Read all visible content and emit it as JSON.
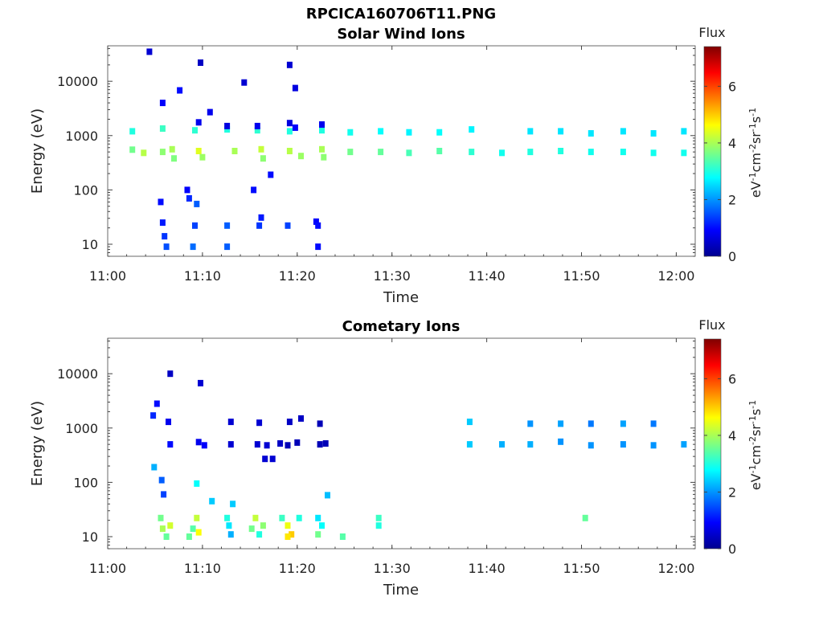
{
  "figure": {
    "title": "RPCICA160706T11.PNG"
  },
  "chart_data": [
    {
      "type": "heatmap",
      "title": "Solar Wind Ions",
      "xlabel": "Time",
      "ylabel": "Energy (eV)",
      "x_ticks": [
        "11:00",
        "11:10",
        "11:20",
        "11:30",
        "11:40",
        "11:50",
        "12:00"
      ],
      "xlim_min": [
        0,
        62
      ],
      "y_scale": "log",
      "ylim": [
        6,
        45000
      ],
      "y_ticks": [
        10,
        100,
        1000,
        10000
      ],
      "y_tick_labels": [
        "10",
        "100",
        "1000",
        "10000"
      ],
      "colorbar": {
        "title": "Flux",
        "label": "eV-1cm-2sr-1s-1",
        "range": [
          0,
          7.4
        ],
        "ticks": [
          "0",
          "2",
          "4",
          "6"
        ]
      },
      "cells": [
        [
          2.6,
          1200,
          3.0
        ],
        [
          2.6,
          550,
          3.6
        ],
        [
          3.8,
          480,
          4.1
        ],
        [
          5.8,
          1350,
          3.2
        ],
        [
          5.8,
          500,
          3.8
        ],
        [
          6.8,
          560,
          4.0
        ],
        [
          7.0,
          380,
          3.7
        ],
        [
          9.2,
          1250,
          3.1
        ],
        [
          9.6,
          520,
          4.4
        ],
        [
          10.0,
          400,
          3.9
        ],
        [
          12.6,
          1300,
          3.0
        ],
        [
          13.4,
          520,
          4.0
        ],
        [
          15.8,
          1250,
          3.1
        ],
        [
          16.2,
          560,
          4.2
        ],
        [
          16.4,
          380,
          3.8
        ],
        [
          19.2,
          1200,
          3.0
        ],
        [
          19.2,
          520,
          4.1
        ],
        [
          20.4,
          420,
          3.9
        ],
        [
          22.6,
          1250,
          3.0
        ],
        [
          22.6,
          560,
          4.0
        ],
        [
          22.8,
          400,
          3.8
        ],
        [
          25.6,
          1150,
          2.9
        ],
        [
          25.6,
          500,
          3.6
        ],
        [
          28.8,
          1200,
          2.8
        ],
        [
          28.8,
          500,
          3.5
        ],
        [
          31.8,
          1150,
          2.7
        ],
        [
          31.8,
          480,
          3.3
        ],
        [
          35.0,
          1150,
          2.8
        ],
        [
          35.0,
          520,
          3.4
        ],
        [
          38.4,
          1300,
          2.7
        ],
        [
          38.4,
          500,
          3.1
        ],
        [
          41.6,
          480,
          2.9
        ],
        [
          44.6,
          1200,
          2.6
        ],
        [
          44.6,
          500,
          3.0
        ],
        [
          47.8,
          1200,
          2.6
        ],
        [
          47.8,
          520,
          3.0
        ],
        [
          51.0,
          1100,
          2.6
        ],
        [
          51.0,
          500,
          2.9
        ],
        [
          54.4,
          1200,
          2.6
        ],
        [
          54.4,
          500,
          2.9
        ],
        [
          57.6,
          1100,
          2.6
        ],
        [
          57.6,
          480,
          2.9
        ],
        [
          60.8,
          1200,
          2.6
        ],
        [
          60.8,
          480,
          2.9
        ],
        [
          4.4,
          35000,
          0.6
        ],
        [
          9.8,
          22000,
          0.5
        ],
        [
          14.4,
          9500,
          0.6
        ],
        [
          19.2,
          20000,
          0.6
        ],
        [
          19.8,
          7500,
          0.7
        ],
        [
          9.6,
          1750,
          0.8
        ],
        [
          12.6,
          1500,
          0.7
        ],
        [
          15.8,
          1500,
          0.8
        ],
        [
          19.2,
          1700,
          0.7
        ],
        [
          19.8,
          1400,
          0.9
        ],
        [
          22.6,
          1600,
          0.8
        ],
        [
          10.8,
          2700,
          0.8
        ],
        [
          5.8,
          4000,
          0.9
        ],
        [
          7.6,
          6800,
          1.0
        ],
        [
          5.6,
          60,
          1.0
        ],
        [
          8.4,
          100,
          0.9
        ],
        [
          8.6,
          70,
          1.2
        ],
        [
          9.4,
          55,
          1.6
        ],
        [
          15.4,
          100,
          1.0
        ],
        [
          17.2,
          190,
          1.0
        ],
        [
          5.8,
          25,
          1.1
        ],
        [
          6.0,
          14,
          1.3
        ],
        [
          6.2,
          9,
          1.5
        ],
        [
          9.0,
          9,
          1.7
        ],
        [
          9.2,
          22,
          1.4
        ],
        [
          12.6,
          22,
          1.6
        ],
        [
          12.6,
          9,
          1.6
        ],
        [
          16.0,
          22,
          1.3
        ],
        [
          16.2,
          31,
          1.1
        ],
        [
          19.0,
          22,
          1.4
        ],
        [
          22.0,
          26,
          0.9
        ],
        [
          22.2,
          22,
          1.0
        ],
        [
          22.2,
          9,
          1.0
        ]
      ]
    },
    {
      "type": "heatmap",
      "title": "Cometary Ions",
      "xlabel": "Time",
      "ylabel": "Energy (eV)",
      "x_ticks": [
        "11:00",
        "11:10",
        "11:20",
        "11:30",
        "11:40",
        "11:50",
        "12:00"
      ],
      "xlim_min": [
        0,
        62
      ],
      "y_scale": "log",
      "ylim": [
        6,
        45000
      ],
      "y_ticks": [
        10,
        100,
        1000,
        10000
      ],
      "y_tick_labels": [
        "10",
        "100",
        "1000",
        "10000"
      ],
      "colorbar": {
        "title": "Flux",
        "label": "eV-1cm-2sr-1s-1",
        "range": [
          0,
          7.4
        ],
        "ticks": [
          "0",
          "2",
          "4",
          "6"
        ]
      },
      "cells": [
        [
          6.6,
          10000,
          0.5
        ],
        [
          9.8,
          6700,
          0.6
        ],
        [
          5.2,
          2800,
          1.0
        ],
        [
          4.8,
          1700,
          1.2
        ],
        [
          6.4,
          1300,
          0.8
        ],
        [
          6.6,
          500,
          1.0
        ],
        [
          9.6,
          550,
          0.8
        ],
        [
          10.2,
          480,
          0.9
        ],
        [
          13.0,
          500,
          0.6
        ],
        [
          15.8,
          500,
          0.6
        ],
        [
          16.8,
          480,
          0.6
        ],
        [
          18.2,
          520,
          0.5
        ],
        [
          19.0,
          480,
          0.4
        ],
        [
          20.0,
          540,
          0.4
        ],
        [
          22.4,
          500,
          0.4
        ],
        [
          22.4,
          1200,
          0.4
        ],
        [
          23.0,
          520,
          0.4
        ],
        [
          16.6,
          270,
          0.6
        ],
        [
          17.4,
          270,
          0.6
        ],
        [
          19.2,
          1300,
          0.5
        ],
        [
          20.4,
          1500,
          0.5
        ],
        [
          13.0,
          1300,
          0.6
        ],
        [
          16.0,
          1250,
          0.6
        ],
        [
          38.2,
          1300,
          2.4
        ],
        [
          38.2,
          500,
          2.4
        ],
        [
          41.6,
          500,
          2.2
        ],
        [
          44.6,
          1200,
          2.0
        ],
        [
          44.6,
          500,
          2.2
        ],
        [
          47.8,
          1200,
          2.1
        ],
        [
          47.8,
          560,
          2.0
        ],
        [
          51.0,
          1200,
          1.8
        ],
        [
          51.0,
          480,
          2.0
        ],
        [
          54.4,
          1200,
          2.1
        ],
        [
          54.4,
          500,
          2.0
        ],
        [
          57.6,
          1200,
          1.8
        ],
        [
          57.6,
          480,
          2.0
        ],
        [
          60.8,
          500,
          2.1
        ],
        [
          4.9,
          190,
          2.2
        ],
        [
          5.7,
          110,
          1.6
        ],
        [
          5.9,
          60,
          1.4
        ],
        [
          9.4,
          95,
          2.8
        ],
        [
          11.0,
          45,
          2.4
        ],
        [
          13.2,
          40,
          2.4
        ],
        [
          23.2,
          58,
          2.3
        ],
        [
          5.6,
          22,
          3.6
        ],
        [
          5.8,
          14,
          4.0
        ],
        [
          6.2,
          10,
          3.5
        ],
        [
          6.6,
          16,
          4.3
        ],
        [
          8.6,
          10,
          3.5
        ],
        [
          9.0,
          14,
          3.4
        ],
        [
          9.4,
          22,
          4.2
        ],
        [
          9.6,
          12,
          4.6
        ],
        [
          12.6,
          22,
          3.0
        ],
        [
          12.8,
          16,
          2.6
        ],
        [
          13.0,
          11,
          2.2
        ],
        [
          15.2,
          14,
          3.6
        ],
        [
          15.6,
          22,
          4.2
        ],
        [
          16.0,
          11,
          3.0
        ],
        [
          16.4,
          16,
          3.8
        ],
        [
          18.4,
          22,
          3.2
        ],
        [
          19.0,
          16,
          4.5
        ],
        [
          19.4,
          11,
          5.0
        ],
        [
          19.0,
          10,
          4.8
        ],
        [
          20.2,
          22,
          3.0
        ],
        [
          22.2,
          22,
          2.6
        ],
        [
          22.6,
          16,
          2.8
        ],
        [
          22.2,
          11,
          3.6
        ],
        [
          24.8,
          10,
          3.4
        ],
        [
          28.6,
          22,
          3.2
        ],
        [
          28.6,
          16,
          3.0
        ],
        [
          50.4,
          22,
          3.5
        ]
      ]
    }
  ]
}
